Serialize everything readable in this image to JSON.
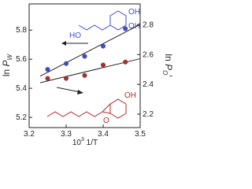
{
  "chart_data": {
    "type": "scatter",
    "x_label": {
      "base": "10",
      "sup": "3",
      "rest": " 1/T"
    },
    "y_label": {
      "text": "ln ",
      "var": "P",
      "sub": "W"
    },
    "y2_label": {
      "text": "ln ",
      "var": "P",
      "sub": "O",
      "sup": "I"
    },
    "xlim": [
      3.2,
      3.5
    ],
    "xticks": [
      3.2,
      3.3,
      3.4,
      3.5
    ],
    "ylim": [
      5.13,
      5.98
    ],
    "yticks": [
      5.2,
      5.4,
      5.6,
      5.8
    ],
    "y2lim": [
      2.11,
      2.94
    ],
    "y2ticks": [
      2.2,
      2.4,
      2.6,
      2.8
    ],
    "series": [
      {
        "color": "#3a4fd0",
        "axis": "y",
        "x": [
          3.25,
          3.3,
          3.35,
          3.4,
          3.46
        ],
        "values": [
          5.53,
          5.57,
          5.62,
          5.69,
          5.81
        ]
      },
      {
        "color": "#b52a2a",
        "axis": "y2",
        "x": [
          3.25,
          3.3,
          3.35,
          3.4,
          3.46
        ],
        "values": [
          2.44,
          2.44,
          2.46,
          2.53,
          2.55
        ]
      }
    ],
    "annotations": {
      "blue": [
        "HO",
        "OH",
        "OH"
      ],
      "red": [
        "OH",
        "O"
      ]
    }
  }
}
